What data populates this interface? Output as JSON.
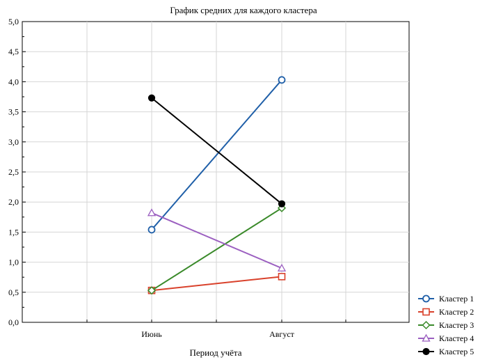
{
  "chart_data": {
    "type": "line",
    "title": "График средних для каждого кластера",
    "xlabel": "Период учёта",
    "ylabel": "",
    "categories": [
      "Июнь",
      "Август"
    ],
    "ylim": [
      0,
      5
    ],
    "yticks": [
      "0,0",
      "0,5",
      "1,0",
      "1,5",
      "2,0",
      "2,5",
      "3,0",
      "3,5",
      "4,0",
      "4,5",
      "5,0"
    ],
    "grid": true,
    "legend_position": "bottom-right",
    "series": [
      {
        "name": "Кластер 1",
        "values": [
          1.54,
          4.03
        ],
        "color": "#1f5fa8",
        "marker": "circle-open"
      },
      {
        "name": "Кластер 2",
        "values": [
          0.53,
          0.76
        ],
        "color": "#d9412b",
        "marker": "square-open"
      },
      {
        "name": "Кластер 3",
        "values": [
          0.53,
          1.9
        ],
        "color": "#3a8a2a",
        "marker": "diamond-open"
      },
      {
        "name": "Кластер 4",
        "values": [
          1.82,
          0.9
        ],
        "color": "#9b5fc0",
        "marker": "triangle-open"
      },
      {
        "name": "Кластер 5",
        "values": [
          3.73,
          1.97
        ],
        "color": "#000000",
        "marker": "circle-filled"
      }
    ]
  }
}
